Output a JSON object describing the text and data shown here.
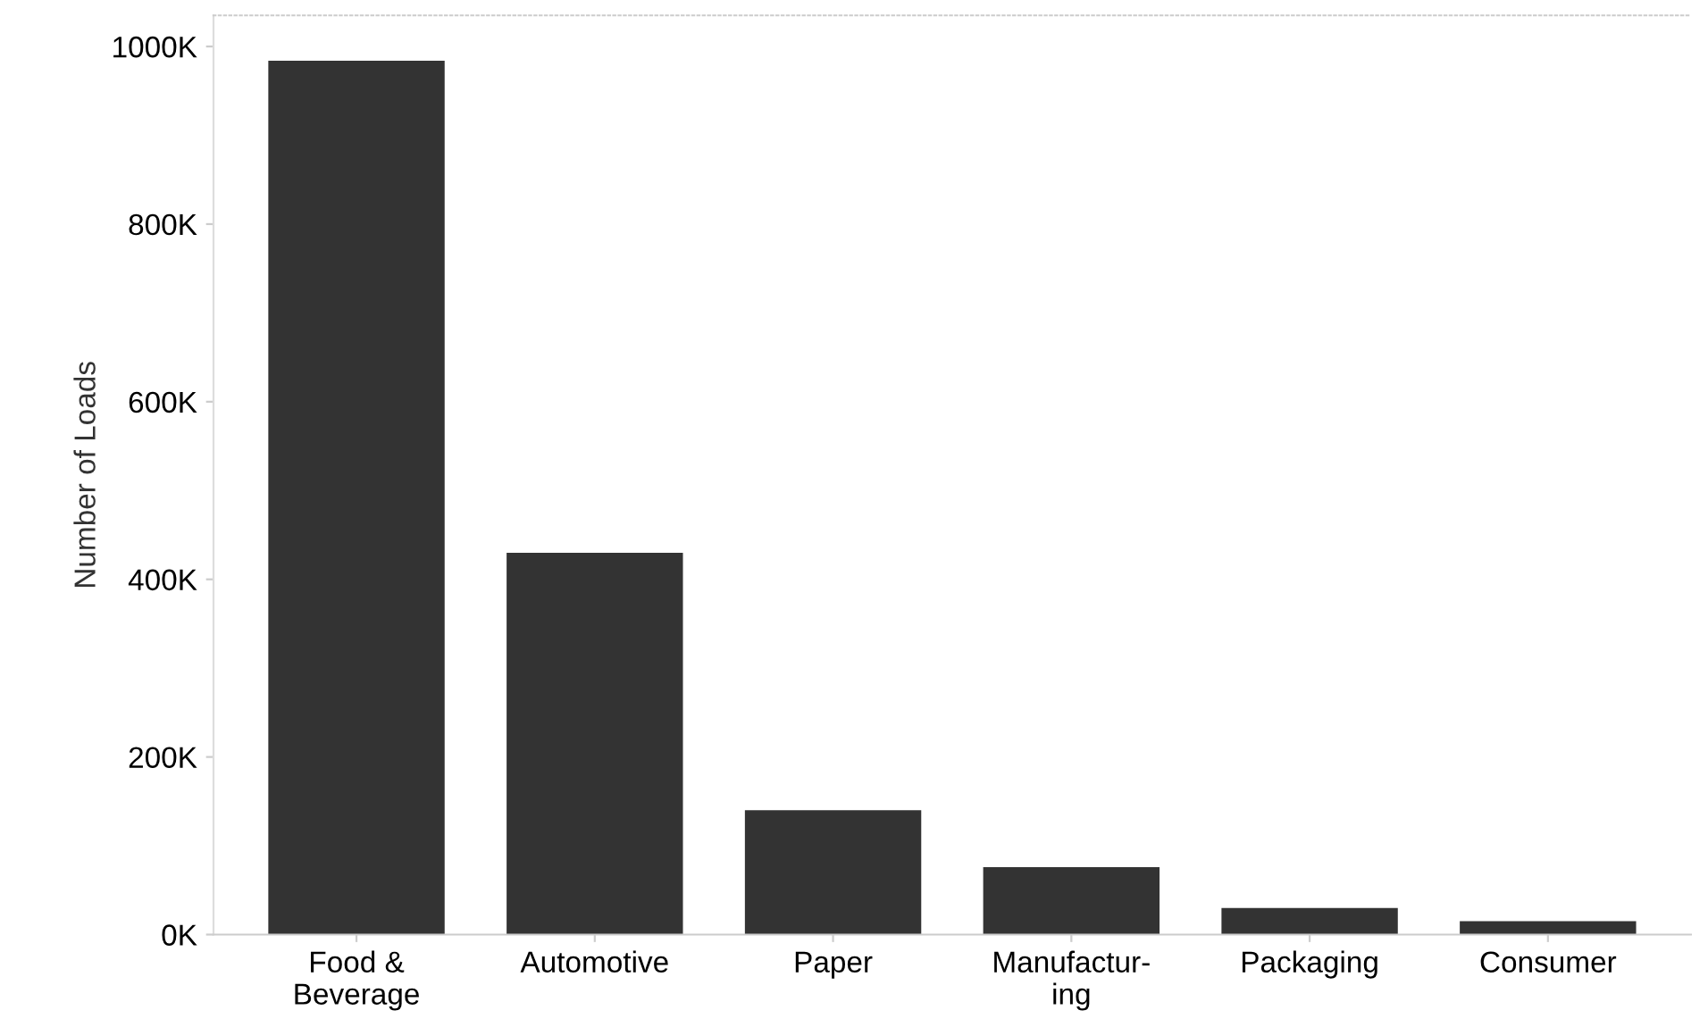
{
  "chart_data": {
    "type": "bar",
    "ylabel": "Number of Loads",
    "categories": [
      "Food &\nBeverage",
      "Automotive",
      "Paper",
      "Manufactur-\ning",
      "Packaging",
      "Consumer"
    ],
    "values": [
      984000,
      430000,
      140000,
      76000,
      30000,
      15000
    ],
    "color": "#333333",
    "ylim": [
      0,
      1035000
    ],
    "yticks": [
      {
        "value": 0,
        "label": "0K"
      },
      {
        "value": 200000,
        "label": "200K"
      },
      {
        "value": 400000,
        "label": "400K"
      },
      {
        "value": 600000,
        "label": "600K"
      },
      {
        "value": 800000,
        "label": "800K"
      },
      {
        "value": 1000000,
        "label": "1000K"
      }
    ],
    "grid": false
  }
}
